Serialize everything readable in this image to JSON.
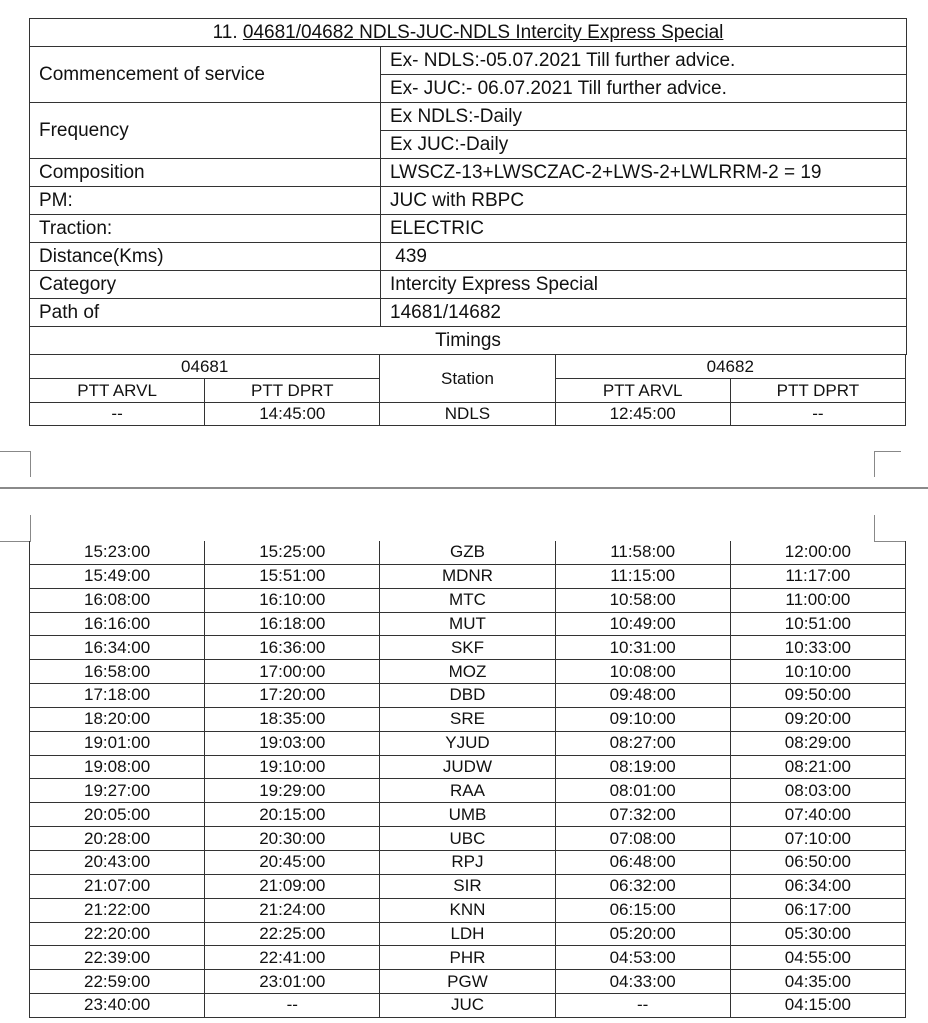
{
  "title": {
    "number": "11.",
    "text": "04681/04682 NDLS-JUC-NDLS Intercity Express Special"
  },
  "info": [
    {
      "label": "Commencement of service",
      "values": [
        "Ex- NDLS:-05.07.2021 Till further advice.",
        "Ex- JUC:- 06.07.2021 Till further advice."
      ]
    },
    {
      "label": "Frequency",
      "values": [
        "Ex NDLS:-Daily",
        "Ex JUC:-Daily"
      ]
    },
    {
      "label": "Composition",
      "values": [
        "LWSCZ-13+LWSCZAC-2+LWS-2+LWLRRM-2 = 19"
      ]
    },
    {
      "label": "PM:",
      "values": [
        "JUC with RBPC"
      ]
    },
    {
      "label": "Traction:",
      "values": [
        "ELECTRIC"
      ]
    },
    {
      "label": "Distance(Kms)",
      "values": [
        " 439"
      ]
    },
    {
      "label": "Category",
      "values": [
        "Intercity Express Special"
      ]
    },
    {
      "label": "Path of",
      "values": [
        "14681/14682"
      ]
    }
  ],
  "timings": {
    "heading": "Timings",
    "train_a": "04681",
    "train_b": "04682",
    "station_header": "Station",
    "arvl": "PTT ARVL",
    "dprt": "PTT DPRT",
    "rows": [
      [
        "--",
        "14:45:00",
        "NDLS",
        "12:45:00",
        "--"
      ],
      [
        "15:23:00",
        "15:25:00",
        "GZB",
        "11:58:00",
        "12:00:00"
      ],
      [
        "15:49:00",
        "15:51:00",
        "MDNR",
        "11:15:00",
        "11:17:00"
      ],
      [
        "16:08:00",
        "16:10:00",
        "MTC",
        "10:58:00",
        "11:00:00"
      ],
      [
        "16:16:00",
        "16:18:00",
        "MUT",
        "10:49:00",
        "10:51:00"
      ],
      [
        "16:34:00",
        "16:36:00",
        "SKF",
        "10:31:00",
        "10:33:00"
      ],
      [
        "16:58:00",
        "17:00:00",
        "MOZ",
        "10:08:00",
        "10:10:00"
      ],
      [
        "17:18:00",
        "17:20:00",
        "DBD",
        "09:48:00",
        "09:50:00"
      ],
      [
        "18:20:00",
        "18:35:00",
        "SRE",
        "09:10:00",
        "09:20:00"
      ],
      [
        "19:01:00",
        "19:03:00",
        "YJUD",
        "08:27:00",
        "08:29:00"
      ],
      [
        "19:08:00",
        "19:10:00",
        "JUDW",
        "08:19:00",
        "08:21:00"
      ],
      [
        "19:27:00",
        "19:29:00",
        "RAA",
        "08:01:00",
        "08:03:00"
      ],
      [
        "20:05:00",
        "20:15:00",
        "UMB",
        "07:32:00",
        "07:40:00"
      ],
      [
        "20:28:00",
        "20:30:00",
        "UBC",
        "07:08:00",
        "07:10:00"
      ],
      [
        "20:43:00",
        "20:45:00",
        "RPJ",
        "06:48:00",
        "06:50:00"
      ],
      [
        "21:07:00",
        "21:09:00",
        "SIR",
        "06:32:00",
        "06:34:00"
      ],
      [
        "21:22:00",
        "21:24:00",
        "KNN",
        "06:15:00",
        "06:17:00"
      ],
      [
        "22:20:00",
        "22:25:00",
        "LDH",
        "05:20:00",
        "05:30:00"
      ],
      [
        "22:39:00",
        "22:41:00",
        "PHR",
        "04:53:00",
        "04:55:00"
      ],
      [
        "22:59:00",
        "23:01:00",
        "PGW",
        "04:33:00",
        "04:35:00"
      ],
      [
        "23:40:00",
        "--",
        "JUC",
        "--",
        "04:15:00"
      ]
    ]
  }
}
